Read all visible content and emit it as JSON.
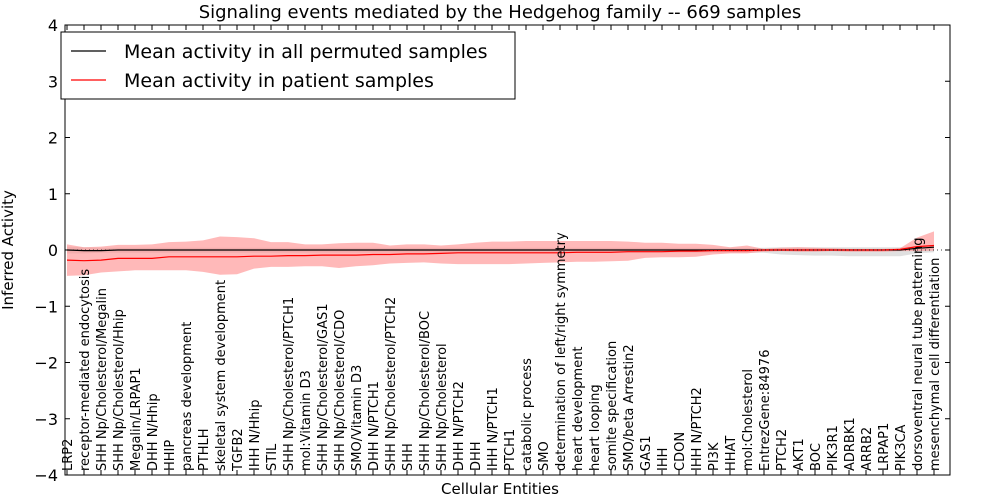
{
  "chart_data": {
    "type": "line",
    "title": "Signaling events mediated by the Hedgehog family -- 669 samples",
    "xlabel": "Cellular Entities",
    "ylabel": "Inferred Activity",
    "ylim": [
      -4,
      4
    ],
    "yticks": [
      -4,
      -3,
      -2,
      -1,
      0,
      1,
      2,
      3,
      4
    ],
    "ytick_labels": [
      "−4",
      "−3",
      "−2",
      "−1",
      "0",
      "1",
      "2",
      "3",
      "4"
    ],
    "legend": {
      "placement": "top-left",
      "entries": [
        {
          "label": "Mean activity in all permuted samples",
          "color": "#000000"
        },
        {
          "label": "Mean activity in patient samples",
          "color": "#ff0000"
        }
      ]
    },
    "categories": [
      "LRP2",
      "receptor-mediated endocytosis",
      "SHH Np/Cholesterol/Megalin",
      "SHH Np/Cholesterol/Hhip",
      "Megalin/LRPAP1",
      "DHH N/Hhip",
      "HHIP",
      "pancreas development",
      "PTHLH",
      "skeletal system development",
      "TGFB2",
      "IHH N/Hhip",
      "STIL",
      "SHH Np/Cholesterol/PTCH1",
      "mol:Vitamin D3",
      "SHH Np/Cholesterol/GAS1",
      "SHH Np/Cholesterol/CDO",
      "SMO/Vitamin D3",
      "DHH N/PTCH1",
      "SHH Np/Cholesterol/PTCH2",
      "SHH",
      "SHH Np/Cholesterol/BOC",
      "SHH Np/Cholesterol",
      "DHH N/PTCH2",
      "DHH",
      "IHH N/PTCH1",
      "PTCH1",
      "catabolic process",
      "SMO",
      "determination of left/right symmetry",
      "heart development",
      "heart looping",
      "somite specification",
      "SMO/beta Arrestin2",
      "GAS1",
      "IHH",
      "CDON",
      "IHH N/PTCH2",
      "PI3K",
      "HHAT",
      "mol:Cholesterol",
      "EntrezGene:84976",
      "PTCH2",
      "AKT1",
      "BOC",
      "PIK3R1",
      "ADRBK1",
      "ARRB2",
      "LRPAP1",
      "PIK3CA",
      "dorsoventral neural tube patterning",
      "mesenchymal cell differentiation"
    ],
    "series": [
      {
        "name": "Mean activity in all permuted samples",
        "color": "#000000",
        "band_color": "#bbbbbb",
        "values": [
          0.0,
          -0.01,
          -0.01,
          0.0,
          0.0,
          0.0,
          0.0,
          0.0,
          0.0,
          0.0,
          0.0,
          0.0,
          0.0,
          0.0,
          0.0,
          0.0,
          0.0,
          0.0,
          0.0,
          0.0,
          0.0,
          0.0,
          0.0,
          0.0,
          0.0,
          0.0,
          0.0,
          0.0,
          0.0,
          0.0,
          0.0,
          0.0,
          0.0,
          0.0,
          0.0,
          0.0,
          0.0,
          0.0,
          0.0,
          0.0,
          0.0,
          0.0,
          0.0,
          0.0,
          0.0,
          0.0,
          0.0,
          0.0,
          0.0,
          0.0,
          0.03,
          0.05
        ],
        "upper": [
          0.06,
          0.05,
          0.04,
          0.04,
          0.04,
          0.04,
          0.04,
          0.04,
          0.04,
          0.04,
          0.04,
          0.04,
          0.04,
          0.04,
          0.04,
          0.04,
          0.04,
          0.04,
          0.04,
          0.04,
          0.04,
          0.04,
          0.04,
          0.04,
          0.04,
          0.04,
          0.04,
          0.04,
          0.04,
          0.04,
          0.04,
          0.04,
          0.04,
          0.04,
          0.04,
          0.04,
          0.04,
          0.04,
          0.04,
          0.04,
          0.04,
          0.04,
          0.05,
          0.05,
          0.05,
          0.05,
          0.05,
          0.05,
          0.05,
          0.05,
          0.07,
          0.08
        ],
        "lower": [
          -0.06,
          -0.06,
          -0.05,
          -0.05,
          -0.05,
          -0.05,
          -0.05,
          -0.05,
          -0.05,
          -0.05,
          -0.05,
          -0.05,
          -0.05,
          -0.05,
          -0.05,
          -0.05,
          -0.05,
          -0.05,
          -0.05,
          -0.05,
          -0.05,
          -0.05,
          -0.05,
          -0.05,
          -0.05,
          -0.05,
          -0.05,
          -0.05,
          -0.05,
          -0.05,
          -0.05,
          -0.05,
          -0.05,
          -0.05,
          -0.05,
          -0.05,
          -0.05,
          -0.05,
          -0.05,
          -0.05,
          -0.05,
          -0.05,
          -0.08,
          -0.09,
          -0.1,
          -0.1,
          -0.11,
          -0.11,
          -0.11,
          -0.11,
          -0.06,
          -0.04
        ]
      },
      {
        "name": "Mean activity in patient samples",
        "color": "#ff0000",
        "band_color": "#ff8a8a",
        "values": [
          -0.18,
          -0.19,
          -0.18,
          -0.15,
          -0.15,
          -0.15,
          -0.12,
          -0.12,
          -0.12,
          -0.12,
          -0.12,
          -0.11,
          -0.11,
          -0.1,
          -0.1,
          -0.09,
          -0.09,
          -0.09,
          -0.08,
          -0.08,
          -0.07,
          -0.07,
          -0.06,
          -0.05,
          -0.05,
          -0.05,
          -0.05,
          -0.05,
          -0.05,
          -0.05,
          -0.04,
          -0.04,
          -0.04,
          -0.03,
          -0.03,
          -0.03,
          -0.02,
          -0.02,
          -0.01,
          -0.01,
          -0.01,
          0.0,
          0.0,
          0.0,
          0.0,
          0.0,
          0.0,
          0.0,
          0.0,
          0.01,
          0.06,
          0.08
        ],
        "upper": [
          0.1,
          0.05,
          0.06,
          0.09,
          0.09,
          0.1,
          0.14,
          0.15,
          0.17,
          0.24,
          0.23,
          0.21,
          0.14,
          0.14,
          0.1,
          0.1,
          0.12,
          0.13,
          0.13,
          0.08,
          0.1,
          0.1,
          0.08,
          0.1,
          0.13,
          0.15,
          0.15,
          0.16,
          0.16,
          0.16,
          0.16,
          0.16,
          0.16,
          0.15,
          0.13,
          0.13,
          0.11,
          0.11,
          0.09,
          0.05,
          0.08,
          0.02,
          0.04,
          0.05,
          0.04,
          0.03,
          0.02,
          0.02,
          0.02,
          0.03,
          0.22,
          0.33
        ],
        "lower": [
          -0.46,
          -0.45,
          -0.4,
          -0.38,
          -0.36,
          -0.36,
          -0.36,
          -0.36,
          -0.39,
          -0.44,
          -0.43,
          -0.33,
          -0.3,
          -0.3,
          -0.29,
          -0.29,
          -0.32,
          -0.29,
          -0.27,
          -0.24,
          -0.23,
          -0.22,
          -0.24,
          -0.25,
          -0.25,
          -0.25,
          -0.25,
          -0.24,
          -0.23,
          -0.22,
          -0.21,
          -0.21,
          -0.2,
          -0.19,
          -0.14,
          -0.13,
          -0.13,
          -0.12,
          -0.08,
          -0.06,
          -0.06,
          -0.03,
          -0.02,
          -0.03,
          -0.03,
          -0.02,
          -0.03,
          -0.03,
          -0.03,
          -0.02,
          -0.02,
          -0.01
        ]
      }
    ]
  }
}
